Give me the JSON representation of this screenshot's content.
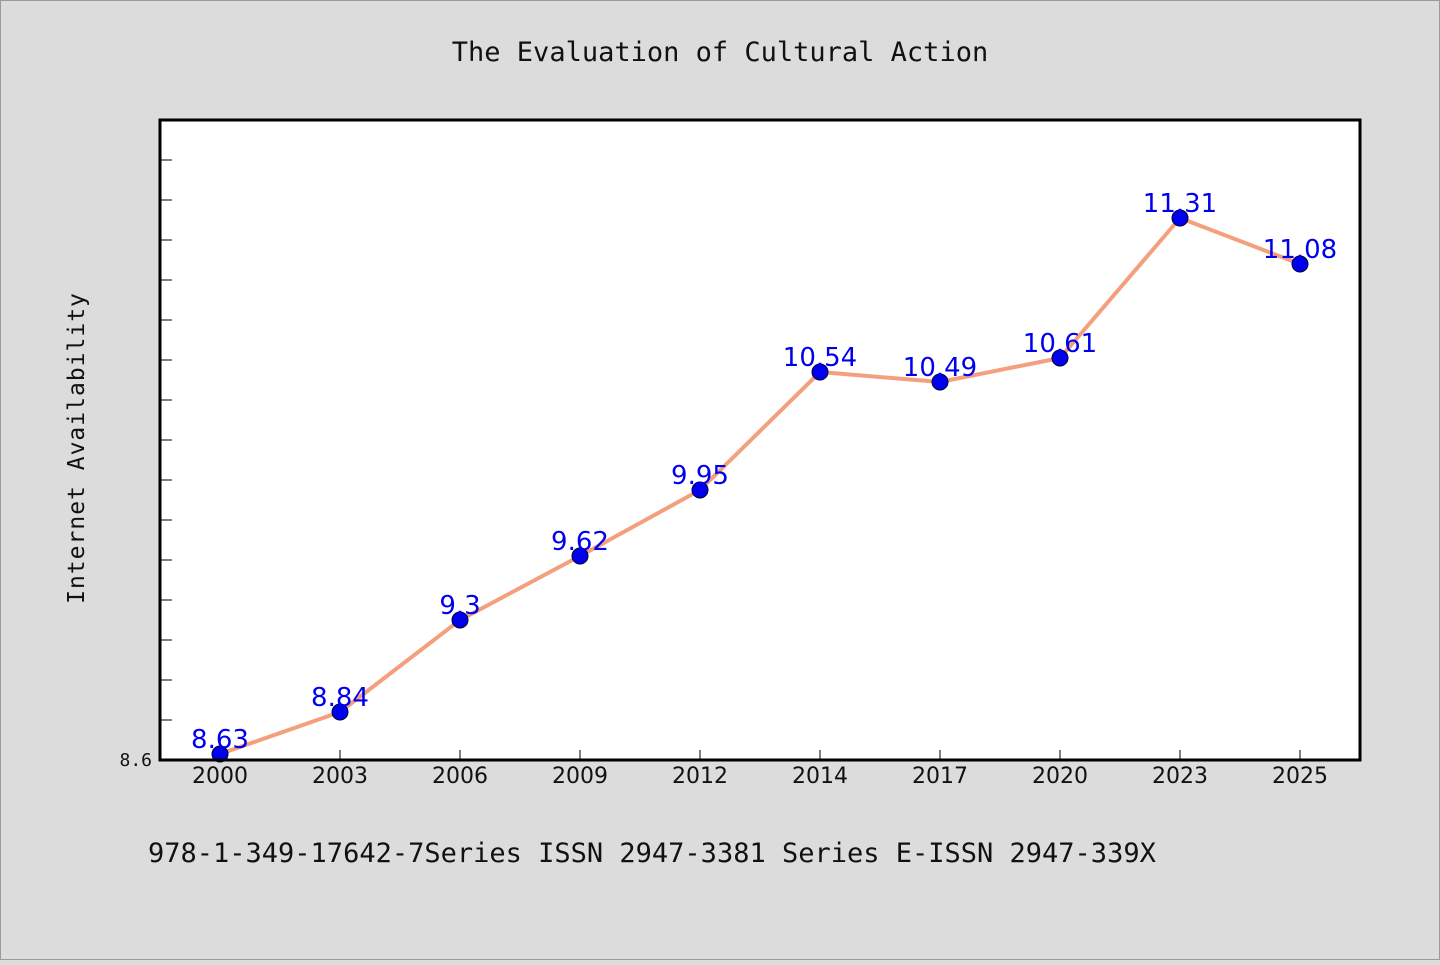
{
  "chart_data": {
    "type": "line",
    "title": "The Evaluation of Cultural Action",
    "xlabel": "",
    "ylabel": "Internet Availability",
    "categories": [
      "2000",
      "2003",
      "2006",
      "2009",
      "2012",
      "2014",
      "2017",
      "2020",
      "2023",
      "2025"
    ],
    "series": [
      {
        "values": [
          8.63,
          8.84,
          9.3,
          9.62,
          9.95,
          10.54,
          10.49,
          10.61,
          11.31,
          11.08
        ],
        "data_labels": [
          "8.63",
          "8.84",
          "9.3",
          "9.62",
          "9.95",
          "10.54",
          "10.49",
          "10.61",
          "11.31",
          "11.08"
        ]
      }
    ],
    "y_tick_labels": [
      "8.6"
    ],
    "ylim": [
      8.6,
      11.8
    ],
    "grid": false,
    "legend": "none",
    "colors": {
      "line": "#f4a07e",
      "marker": "#0000ee",
      "label": "#0000ee",
      "background": "#dcdcdc",
      "plot_background": "#ffffff"
    }
  },
  "footer": {
    "text": "978-1-349-17642-7Series ISSN 2947-3381 Series E-ISSN 2947-339X"
  }
}
